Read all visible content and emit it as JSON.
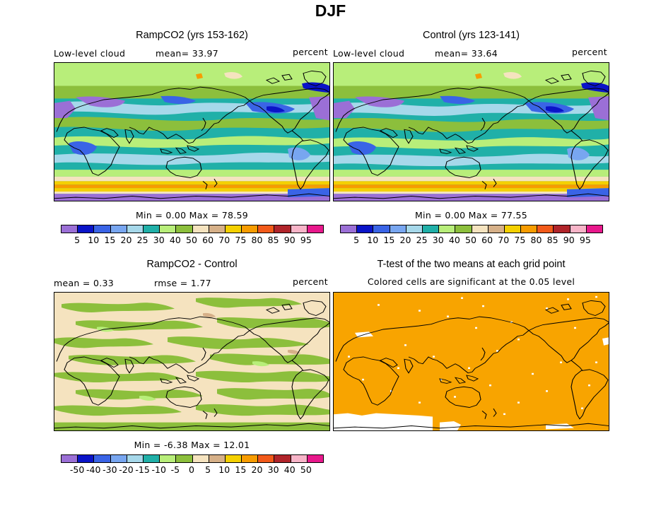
{
  "title": "DJF",
  "panels": {
    "ramp": {
      "title": "RampCO2 (yrs 153-162)",
      "variable": "Low-level cloud",
      "mean_text": "mean=  33.97",
      "units": "percent",
      "minmax": "Min =    0.00 Max =   78.59"
    },
    "control": {
      "title": "Control (yrs 123-141)",
      "variable": "Low-level cloud",
      "mean_text": "mean=  33.64",
      "units": "percent",
      "minmax": "Min =    0.00 Max =   77.55"
    },
    "diff": {
      "title": "RampCO2 - Control",
      "mean_text": "mean =    0.33",
      "rmse_text": "rmse =    1.77",
      "units": "percent",
      "minmax": "Min =   -6.38 Max =   12.01"
    },
    "ttest": {
      "title": "T-test of the two means at each grid point",
      "subtitle": "Colored cells are significant at the 0.05 level"
    }
  },
  "colorbar_abs": {
    "colors": [
      "#9b6fd6",
      "#0a14c8",
      "#3a64e6",
      "#78a6f0",
      "#a6d8ea",
      "#20b0a8",
      "#b8ee7a",
      "#8cbf3c",
      "#f5e3bf",
      "#d6b088",
      "#f4d000",
      "#f79c00",
      "#f25a1a",
      "#b0242a",
      "#f7b4c8",
      "#e8188c"
    ],
    "labels": [
      "5",
      "10",
      "15",
      "20",
      "25",
      "30",
      "40",
      "50",
      "60",
      "70",
      "75",
      "80",
      "85",
      "90",
      "95"
    ]
  },
  "colorbar_diff": {
    "colors": [
      "#9b6fd6",
      "#0a14c8",
      "#3a64e6",
      "#78a6f0",
      "#a6d8ea",
      "#20b0a8",
      "#b8ee7a",
      "#8cbf3c",
      "#f5e3bf",
      "#d6b088",
      "#f4d000",
      "#f79c00",
      "#f25a1a",
      "#b0242a",
      "#f7b4c8",
      "#e8188c"
    ],
    "labels": [
      "-50",
      "-40",
      "-30",
      "-20",
      "-15",
      "-10",
      "-5",
      "0",
      "5",
      "10",
      "15",
      "20",
      "30",
      "40",
      "50"
    ]
  }
}
